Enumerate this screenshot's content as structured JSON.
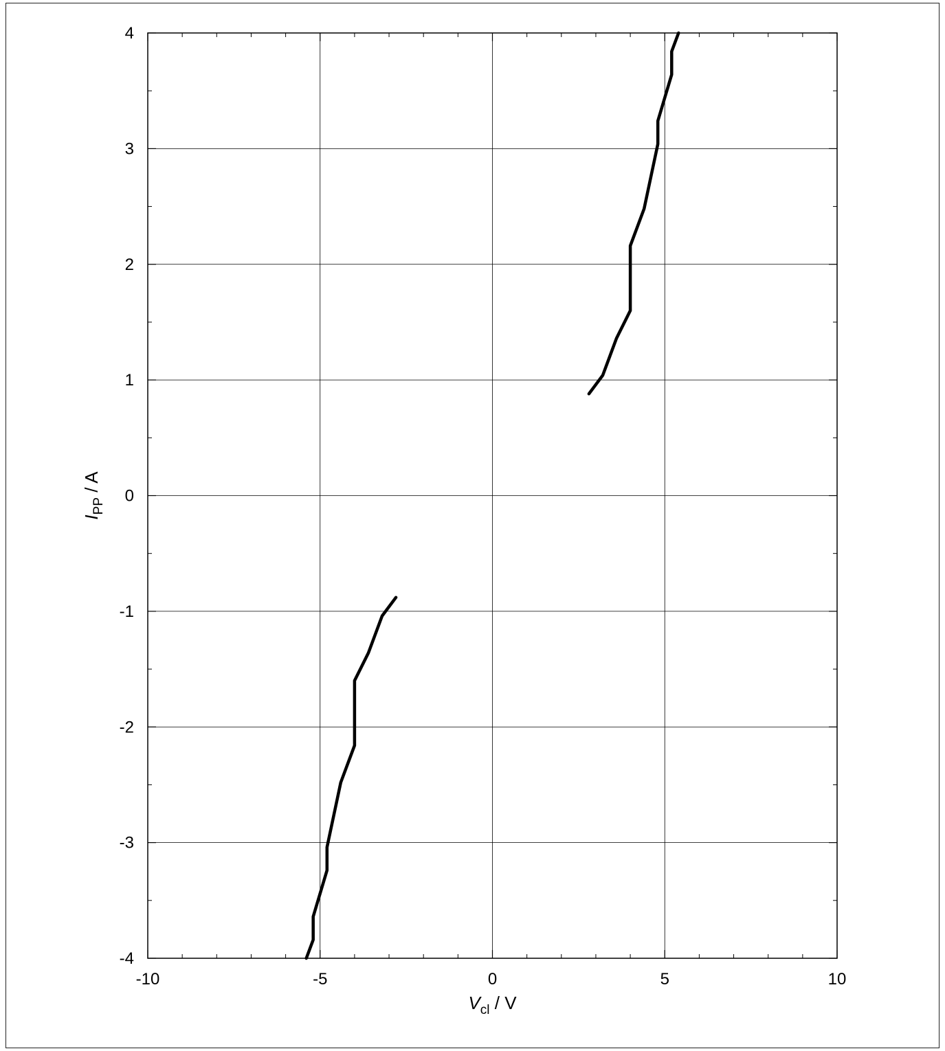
{
  "chart_data": {
    "type": "line",
    "xlabel": {
      "main": "V",
      "sub": "cl",
      "unit": " / V"
    },
    "ylabel": {
      "main": "I",
      "sub": "PP",
      "unit": " / A"
    },
    "xlim": [
      -10,
      10
    ],
    "ylim": [
      -4,
      4
    ],
    "x_major_ticks": [
      -10,
      -5,
      0,
      5,
      10
    ],
    "y_major_ticks": [
      -4,
      -3,
      -2,
      -1,
      0,
      1,
      2,
      3,
      4
    ],
    "x_minor_step": 1,
    "y_minor_step": 0.5,
    "grid": true,
    "line_color": "#000000",
    "series": [
      {
        "points": [
          [
            2.8,
            0.88
          ],
          [
            3.2,
            1.04
          ],
          [
            3.6,
            1.36
          ],
          [
            4.0,
            1.6
          ],
          [
            4.0,
            2.16
          ],
          [
            4.4,
            2.48
          ],
          [
            4.8,
            3.04
          ],
          [
            4.8,
            3.24
          ],
          [
            5.2,
            3.64
          ],
          [
            5.2,
            3.84
          ],
          [
            5.4,
            4.0
          ]
        ]
      },
      {
        "points": [
          [
            -2.8,
            -0.88
          ],
          [
            -3.2,
            -1.04
          ],
          [
            -3.6,
            -1.36
          ],
          [
            -4.0,
            -1.6
          ],
          [
            -4.0,
            -2.16
          ],
          [
            -4.4,
            -2.48
          ],
          [
            -4.8,
            -3.04
          ],
          [
            -4.8,
            -3.24
          ],
          [
            -5.2,
            -3.64
          ],
          [
            -5.2,
            -3.84
          ],
          [
            -5.4,
            -4.0
          ]
        ]
      }
    ]
  }
}
